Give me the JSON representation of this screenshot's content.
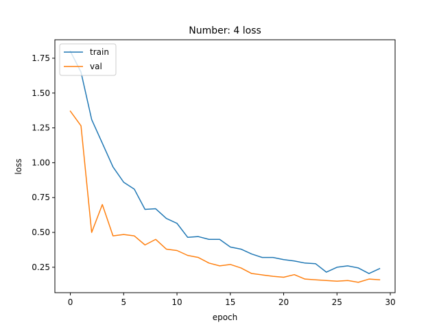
{
  "chart_data": {
    "type": "line",
    "title": "Number: 4 loss",
    "xlabel": "epoch",
    "ylabel": "loss",
    "xlim": [
      -1.45,
      30.45
    ],
    "ylim": [
      0.0675,
      1.8825
    ],
    "x_ticks": [
      0,
      5,
      10,
      15,
      20,
      25,
      30
    ],
    "y_ticks": [
      0.25,
      0.5,
      0.75,
      1.0,
      1.25,
      1.5,
      1.75
    ],
    "y_tick_labels": [
      "0.25",
      "0.50",
      "0.75",
      "1.00",
      "1.25",
      "1.50",
      "1.75"
    ],
    "grid": false,
    "legend": "upper left",
    "x": [
      0,
      1,
      2,
      3,
      4,
      5,
      6,
      7,
      8,
      9,
      10,
      11,
      12,
      13,
      14,
      15,
      16,
      17,
      18,
      19,
      20,
      21,
      22,
      23,
      24,
      25,
      26,
      27,
      28,
      29
    ],
    "series": [
      {
        "name": "train",
        "color": "#1f77b4",
        "values": [
          1.8,
          1.65,
          1.31,
          1.14,
          0.97,
          0.86,
          0.81,
          0.665,
          0.67,
          0.6,
          0.565,
          0.465,
          0.47,
          0.45,
          0.45,
          0.395,
          0.38,
          0.345,
          0.32,
          0.32,
          0.305,
          0.295,
          0.28,
          0.275,
          0.215,
          0.25,
          0.26,
          0.245,
          0.205,
          0.24
        ]
      },
      {
        "name": "val",
        "color": "#ff7f0e",
        "values": [
          1.37,
          1.265,
          0.5,
          0.7,
          0.475,
          0.485,
          0.475,
          0.41,
          0.45,
          0.38,
          0.37,
          0.335,
          0.32,
          0.28,
          0.26,
          0.27,
          0.245,
          0.205,
          0.195,
          0.185,
          0.178,
          0.197,
          0.165,
          0.16,
          0.155,
          0.15,
          0.155,
          0.142,
          0.165,
          0.16
        ]
      }
    ]
  }
}
